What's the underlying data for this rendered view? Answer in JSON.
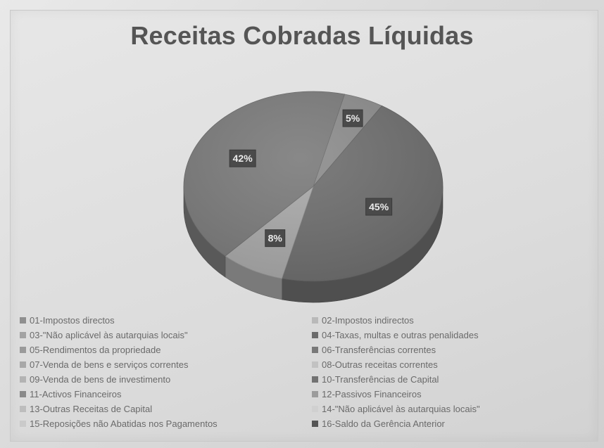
{
  "chart_data": {
    "type": "pie",
    "title": "Receitas Cobradas Líquidas",
    "legend_position": "bottom",
    "categories": [
      "01-Impostos directos",
      "02-Impostos indirectos",
      "03-\"Não aplicável às autarquias locais\"",
      "04-Taxas, multas e outras penalidades",
      "05-Rendimentos da propriedade",
      "06-Transferências correntes",
      "07-Venda de bens e serviços correntes",
      "08-Outras receitas correntes",
      "09-Venda de bens de investimento",
      "10-Transferências de Capital",
      "11-Activos Financeiros",
      "12-Passivos Financeiros",
      "13-Outras Receitas de Capital",
      "14-\"Não aplicável às autarquias locais\"",
      "15-Reposições não Abatidas nos Pagamentos",
      "16-Saldo da Gerência Anterior"
    ],
    "slices": [
      {
        "label": "01-Impostos directos",
        "value": 42,
        "data_label": "42%",
        "color": "#7b7b7b"
      },
      {
        "label": "05-Rendimentos da propriedade",
        "value": 5,
        "data_label": "5%",
        "color": "#8c8c8c"
      },
      {
        "label": "06-Transferências correntes",
        "value": 45,
        "data_label": "45%",
        "color": "#6e6e6e"
      },
      {
        "label": "07-Venda de bens e serviços correntes",
        "value": 8,
        "data_label": "8%",
        "color": "#a9a9a9"
      }
    ],
    "legend_colors": [
      "#8f8f8f",
      "#b9b9b9",
      "#a3a3a3",
      "#6b6b6b",
      "#9a9a9a",
      "#787878",
      "#a8a8a8",
      "#c2c2c2",
      "#b3b3b3",
      "#727272",
      "#8a8a8a",
      "#9c9c9c",
      "#bdbdbd",
      "#d0d0d0",
      "#cacaca",
      "#555555"
    ]
  }
}
